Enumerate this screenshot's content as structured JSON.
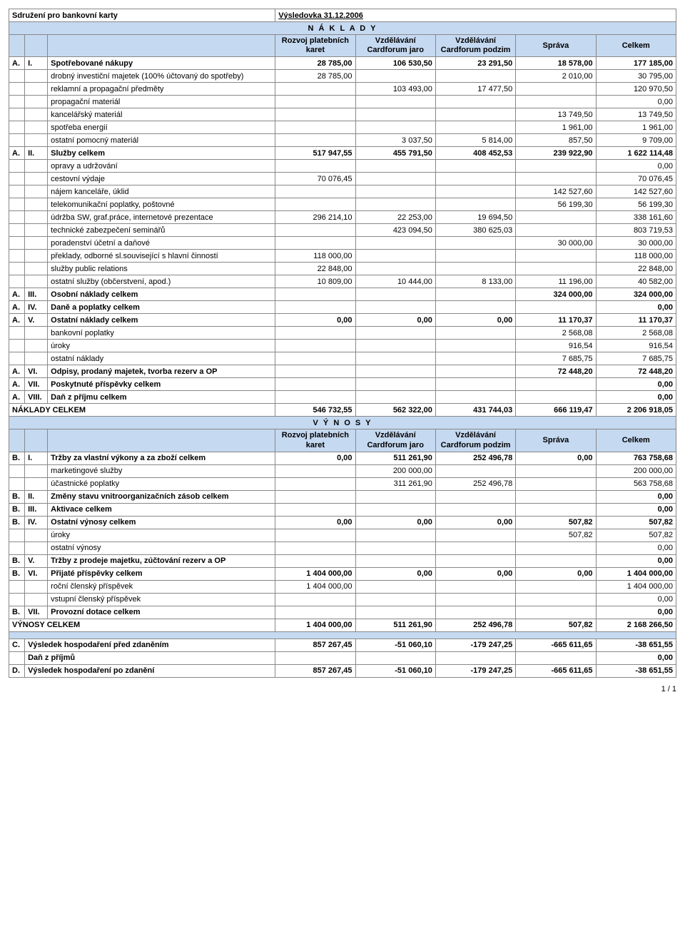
{
  "meta": {
    "title_left": "Sdružení pro bankovní karty",
    "title_right": "Výsledovka 31.12.2006",
    "footer": "1 / 1"
  },
  "sections": {
    "naklady": "N Á K L A D Y",
    "vynosy": "V Ý N O S Y"
  },
  "columns": {
    "c1": "Rozvoj platebních karet",
    "c2": "Vzdělávání Cardforum jaro",
    "c3": "Vzdělávání Cardforum podzim",
    "c4": "Správa",
    "c5": "Celkem"
  },
  "naklady": [
    {
      "a": "A.",
      "b": "I.",
      "label": "Spotřebované nákupy",
      "v": [
        "28 785,00",
        "106 530,50",
        "23 291,50",
        "18 578,00",
        "177 185,00"
      ],
      "bold": true
    },
    {
      "a": "",
      "b": "",
      "label": "drobný investiční majetek (100% účtovaný do spotřeby)",
      "v": [
        "28 785,00",
        "",
        "",
        "2 010,00",
        "30 795,00"
      ]
    },
    {
      "a": "",
      "b": "",
      "label": "reklamní a propagační předměty",
      "v": [
        "",
        "103 493,00",
        "17 477,50",
        "",
        "120 970,50"
      ]
    },
    {
      "a": "",
      "b": "",
      "label": "propagační materiál",
      "v": [
        "",
        "",
        "",
        "",
        "0,00"
      ]
    },
    {
      "a": "",
      "b": "",
      "label": "kancelářský materiál",
      "v": [
        "",
        "",
        "",
        "13 749,50",
        "13 749,50"
      ]
    },
    {
      "a": "",
      "b": "",
      "label": "spotřeba energií",
      "v": [
        "",
        "",
        "",
        "1 961,00",
        "1 961,00"
      ]
    },
    {
      "a": "",
      "b": "",
      "label": "ostatní pomocný materiál",
      "v": [
        "",
        "3 037,50",
        "5 814,00",
        "857,50",
        "9 709,00"
      ]
    },
    {
      "a": "A.",
      "b": "II.",
      "label": "Služby celkem",
      "v": [
        "517 947,55",
        "455 791,50",
        "408 452,53",
        "239 922,90",
        "1 622 114,48"
      ],
      "bold": true
    },
    {
      "a": "",
      "b": "",
      "label": "opravy a udržování",
      "v": [
        "",
        "",
        "",
        "",
        "0,00"
      ]
    },
    {
      "a": "",
      "b": "",
      "label": "cestovní výdaje",
      "v": [
        "70 076,45",
        "",
        "",
        "",
        "70 076,45"
      ]
    },
    {
      "a": "",
      "b": "",
      "label": "nájem kanceláře, úklid",
      "v": [
        "",
        "",
        "",
        "142 527,60",
        "142 527,60"
      ]
    },
    {
      "a": "",
      "b": "",
      "label": "telekomunikační poplatky, poštovné",
      "v": [
        "",
        "",
        "",
        "56 199,30",
        "56 199,30"
      ]
    },
    {
      "a": "",
      "b": "",
      "label": "údržba SW, graf.práce, internetové prezentace",
      "v": [
        "296 214,10",
        "22 253,00",
        "19 694,50",
        "",
        "338 161,60"
      ]
    },
    {
      "a": "",
      "b": "",
      "label": "technické zabezpečení seminářů",
      "v": [
        "",
        "423 094,50",
        "380 625,03",
        "",
        "803 719,53"
      ]
    },
    {
      "a": "",
      "b": "",
      "label": "poradenství účetní a daňové",
      "v": [
        "",
        "",
        "",
        "30 000,00",
        "30 000,00"
      ]
    },
    {
      "a": "",
      "b": "",
      "label": "překlady, odborné sl.související s hlavní činností",
      "v": [
        "118 000,00",
        "",
        "",
        "",
        "118 000,00"
      ]
    },
    {
      "a": "",
      "b": "",
      "label": "služby public relations",
      "v": [
        "22 848,00",
        "",
        "",
        "",
        "22 848,00"
      ]
    },
    {
      "a": "",
      "b": "",
      "label": "ostatní služby (občerstvení, apod.)",
      "v": [
        "10 809,00",
        "10 444,00",
        "8 133,00",
        "11 196,00",
        "40 582,00"
      ]
    },
    {
      "a": "A.",
      "b": "III.",
      "label": "Osobní náklady celkem",
      "v": [
        "",
        "",
        "",
        "324 000,00",
        "324 000,00"
      ],
      "bold": true
    },
    {
      "a": "A.",
      "b": "IV.",
      "label": "Daně a poplatky celkem",
      "v": [
        "",
        "",
        "",
        "",
        "0,00"
      ],
      "bold": true
    },
    {
      "a": "A.",
      "b": "V.",
      "label": "Ostatní náklady celkem",
      "v": [
        "0,00",
        "0,00",
        "0,00",
        "11 170,37",
        "11 170,37"
      ],
      "bold": true
    },
    {
      "a": "",
      "b": "",
      "label": "bankovní poplatky",
      "v": [
        "",
        "",
        "",
        "2 568,08",
        "2 568,08"
      ]
    },
    {
      "a": "",
      "b": "",
      "label": "úroky",
      "v": [
        "",
        "",
        "",
        "916,54",
        "916,54"
      ]
    },
    {
      "a": "",
      "b": "",
      "label": "ostatní náklady",
      "v": [
        "",
        "",
        "",
        "7 685,75",
        "7 685,75"
      ]
    },
    {
      "a": "A.",
      "b": "VI.",
      "label": "Odpisy, prodaný majetek, tvorba rezerv a OP",
      "v": [
        "",
        "",
        "",
        "72 448,20",
        "72 448,20"
      ],
      "bold": true
    },
    {
      "a": "A.",
      "b": "VII.",
      "label": "Poskytnuté příspěvky celkem",
      "v": [
        "",
        "",
        "",
        "",
        "0,00"
      ],
      "bold": true
    },
    {
      "a": "A.",
      "b": "VIII.",
      "label": "Daň z příjmu celkem",
      "v": [
        "",
        "",
        "",
        "",
        "0,00"
      ],
      "bold": true
    }
  ],
  "naklady_total": {
    "label": "NÁKLADY CELKEM",
    "v": [
      "546 732,55",
      "562 322,00",
      "431 744,03",
      "666 119,47",
      "2 206 918,05"
    ]
  },
  "vynosy": [
    {
      "a": "B.",
      "b": "I.",
      "label": "Tržby za vlastní výkony a za zboží celkem",
      "v": [
        "0,00",
        "511 261,90",
        "252 496,78",
        "0,00",
        "763 758,68"
      ],
      "bold": true
    },
    {
      "a": "",
      "b": "",
      "label": "marketingové služby",
      "v": [
        "",
        "200 000,00",
        "",
        "",
        "200 000,00"
      ]
    },
    {
      "a": "",
      "b": "",
      "label": "účastnické poplatky",
      "v": [
        "",
        "311 261,90",
        "252 496,78",
        "",
        "563 758,68"
      ]
    },
    {
      "a": "B.",
      "b": "II.",
      "label": "Změny stavu vnitroorganizačních zásob celkem",
      "v": [
        "",
        "",
        "",
        "",
        "0,00"
      ],
      "bold": true
    },
    {
      "a": "B.",
      "b": "III.",
      "label": "Aktivace celkem",
      "v": [
        "",
        "",
        "",
        "",
        "0,00"
      ],
      "bold": true
    },
    {
      "a": "B.",
      "b": "IV.",
      "label": "Ostatní výnosy celkem",
      "v": [
        "0,00",
        "0,00",
        "0,00",
        "507,82",
        "507,82"
      ],
      "bold": true
    },
    {
      "a": "",
      "b": "",
      "label": "úroky",
      "v": [
        "",
        "",
        "",
        "507,82",
        "507,82"
      ]
    },
    {
      "a": "",
      "b": "",
      "label": "ostatní výnosy",
      "v": [
        "",
        "",
        "",
        "",
        "0,00"
      ]
    },
    {
      "a": "B.",
      "b": "V.",
      "label": "Tržby z prodeje majetku, zúčtování rezerv a OP",
      "v": [
        "",
        "",
        "",
        "",
        "0,00"
      ],
      "bold": true
    },
    {
      "a": "B.",
      "b": "VI.",
      "label": "Přijaté příspěvky celkem",
      "v": [
        "1 404 000,00",
        "0,00",
        "0,00",
        "0,00",
        "1 404 000,00"
      ],
      "bold": true
    },
    {
      "a": "",
      "b": "",
      "label": "roční členský příspěvek",
      "v": [
        "1 404 000,00",
        "",
        "",
        "",
        "1 404 000,00"
      ]
    },
    {
      "a": "",
      "b": "",
      "label": "vstupní členský příspěvek",
      "v": [
        "",
        "",
        "",
        "",
        "0,00"
      ]
    },
    {
      "a": "B.",
      "b": "VII.",
      "label": "Provozní dotace celkem",
      "v": [
        "",
        "",
        "",
        "",
        "0,00"
      ],
      "bold": true
    }
  ],
  "vynosy_total": {
    "label": "VÝNOSY CELKEM",
    "v": [
      "1 404 000,00",
      "511 261,90",
      "252 496,78",
      "507,82",
      "2 168 266,50"
    ]
  },
  "result": [
    {
      "a": "C.",
      "b": "",
      "label": "Výsledek hospodaření před zdaněním",
      "v": [
        "857 267,45",
        "-51 060,10",
        "-179 247,25",
        "-665 611,65",
        "-38 651,55"
      ],
      "bold": true
    },
    {
      "a": "",
      "b": "",
      "label": "Daň z příjmů",
      "v": [
        "",
        "",
        "",
        "",
        "0,00"
      ],
      "bold": true
    },
    {
      "a": "D.",
      "b": "",
      "label": "Výsledek hospodaření po zdanění",
      "v": [
        "857 267,45",
        "-51 060,10",
        "-179 247,25",
        "-665 611,65",
        "-38 651,55"
      ],
      "bold": true
    }
  ],
  "style": {
    "header_bg": "#c5d9f1",
    "border_color": "#888888",
    "font_size": 11
  }
}
